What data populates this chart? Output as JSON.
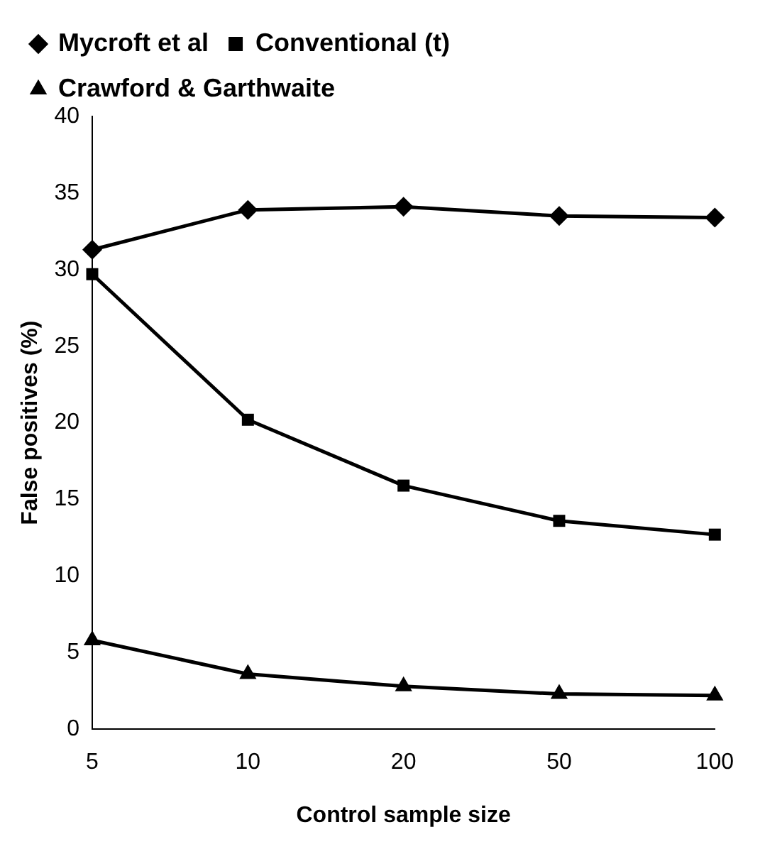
{
  "chart_data": {
    "type": "line",
    "xlabel": "Control sample size",
    "ylabel": "False positives (%)",
    "categories": [
      "5",
      "10",
      "20",
      "50",
      "100"
    ],
    "series": [
      {
        "name": "Mycroft et al",
        "color": "#000000",
        "marker": "diamond",
        "values": [
          31.3,
          33.9,
          34.1,
          33.5,
          33.4
        ]
      },
      {
        "name": "Conventional (t)",
        "color": "#000000",
        "marker": "square",
        "values": [
          29.7,
          20.2,
          15.9,
          13.6,
          12.7
        ]
      },
      {
        "name": "Crawford & Garthwaite",
        "color": "#000000",
        "marker": "triangle",
        "values": [
          5.8,
          3.6,
          2.8,
          2.3,
          2.2
        ]
      }
    ],
    "ylim": [
      0,
      40
    ],
    "yticks": [
      0,
      5,
      10,
      15,
      20,
      25,
      30,
      35,
      40
    ],
    "grid": false,
    "legend": "top",
    "line_style": "solid"
  }
}
